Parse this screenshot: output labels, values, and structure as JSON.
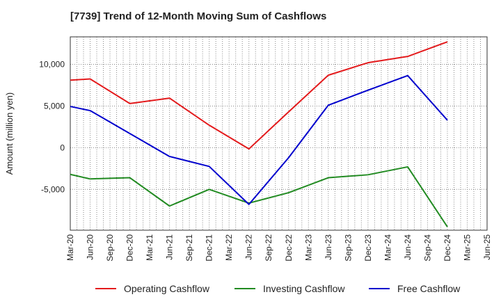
{
  "chart_data": {
    "type": "line",
    "title": "[7739]  Trend of 12-Month Moving Sum of Cashflows",
    "xlabel": "",
    "ylabel": "Amount (million yen)",
    "categories": [
      "Mar-20",
      "Jun-20",
      "Sep-20",
      "Dec-20",
      "Mar-21",
      "Jun-21",
      "Sep-21",
      "Dec-21",
      "Mar-22",
      "Jun-22",
      "Sep-22",
      "Dec-22",
      "Mar-23",
      "Jun-23",
      "Sep-23",
      "Dec-23",
      "Mar-24",
      "Jun-24",
      "Sep-24",
      "Dec-24",
      "Mar-25",
      "Jun-25"
    ],
    "ylim": [
      -9900,
      13300
    ],
    "yticks": [
      -5000,
      0,
      5000,
      10000
    ],
    "ytick_labels": [
      "-5,000",
      "0",
      "5,000",
      "10,000"
    ],
    "grid": true,
    "legend_position": "bottom",
    "series": [
      {
        "name": "Operating Cashflow",
        "color": "#e31a1c",
        "points": [
          {
            "x": "Mar-20",
            "y": 8100
          },
          {
            "x": "Jun-20",
            "y": 8250
          },
          {
            "x": "Dec-20",
            "y": 5300
          },
          {
            "x": "Jun-21",
            "y": 5950
          },
          {
            "x": "Dec-21",
            "y": 2700
          },
          {
            "x": "Jun-22",
            "y": -150
          },
          {
            "x": "Dec-22",
            "y": 4300
          },
          {
            "x": "Jun-23",
            "y": 8700
          },
          {
            "x": "Dec-23",
            "y": 10200
          },
          {
            "x": "Jun-24",
            "y": 10950
          },
          {
            "x": "Dec-24",
            "y": 12700
          }
        ]
      },
      {
        "name": "Investing Cashflow",
        "color": "#228b22",
        "points": [
          {
            "x": "Mar-20",
            "y": -3200
          },
          {
            "x": "Jun-20",
            "y": -3750
          },
          {
            "x": "Dec-20",
            "y": -3600
          },
          {
            "x": "Jun-21",
            "y": -7000
          },
          {
            "x": "Dec-21",
            "y": -5000
          },
          {
            "x": "Jun-22",
            "y": -6650
          },
          {
            "x": "Dec-22",
            "y": -5400
          },
          {
            "x": "Jun-23",
            "y": -3600
          },
          {
            "x": "Dec-23",
            "y": -3250
          },
          {
            "x": "Jun-24",
            "y": -2300
          },
          {
            "x": "Dec-24",
            "y": -9500
          }
        ]
      },
      {
        "name": "Free Cashflow",
        "color": "#0000cd",
        "points": [
          {
            "x": "Mar-20",
            "y": 4950
          },
          {
            "x": "Jun-20",
            "y": 4450
          },
          {
            "x": "Dec-20",
            "y": 1700
          },
          {
            "x": "Jun-21",
            "y": -1050
          },
          {
            "x": "Dec-21",
            "y": -2250
          },
          {
            "x": "Jun-22",
            "y": -6800
          },
          {
            "x": "Dec-22",
            "y": -1200
          },
          {
            "x": "Jun-23",
            "y": 5100
          },
          {
            "x": "Dec-23",
            "y": 6900
          },
          {
            "x": "Jun-24",
            "y": 8650
          },
          {
            "x": "Dec-24",
            "y": 3300
          }
        ]
      }
    ]
  }
}
